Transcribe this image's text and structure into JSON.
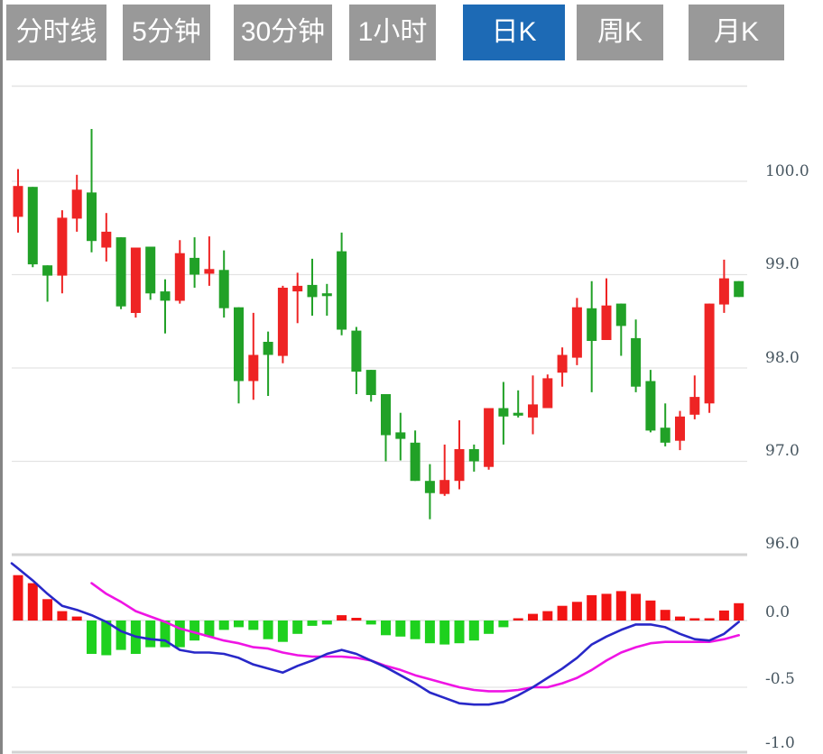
{
  "toolbar": {
    "tabs": [
      {
        "label": "分时线",
        "active": false
      },
      {
        "label": "5分钟",
        "active": false
      },
      {
        "label": "30分钟",
        "active": false
      },
      {
        "label": "1小时",
        "active": false
      },
      {
        "label": "日K",
        "active": true
      },
      {
        "label": "周K",
        "active": false
      },
      {
        "label": "月K",
        "active": false
      }
    ]
  },
  "colors": {
    "tab_gray": "#999999",
    "tab_active_blue": "#1d6ab5",
    "up_red": "#ee2424",
    "down_green": "#21a127",
    "macd_bar_up": "#f21414",
    "macd_bar_down": "#1ed11e",
    "dif_blue": "#2828c8",
    "dea_magenta": "#ef14e4",
    "grid": "#e3e3e3",
    "zero_line": "#dcdcdc",
    "separator": "#d2d2d2",
    "axis_label": "#46555f"
  },
  "chart_data": {
    "type": "candlestick",
    "title": "Daily K-line with MACD",
    "legend_position": "none",
    "grid": true,
    "price_axis": {
      "labels": [
        "100.0",
        "99.0",
        "98.0",
        "97.0",
        "96.0"
      ],
      "ticks": [
        100,
        99,
        98,
        97,
        96
      ],
      "range": [
        95.9,
        101.0
      ]
    },
    "macd_axis": {
      "labels": [
        "0.0",
        "-0.5",
        "-1.0"
      ],
      "ticks": [
        0,
        -0.5,
        -1
      ],
      "range": [
        -1.0,
        0.45
      ]
    },
    "candles": [
      {
        "o": 99.62,
        "c": 99.95,
        "h": 100.13,
        "l": 99.45
      },
      {
        "o": 99.94,
        "c": 99.11,
        "h": 99.94,
        "l": 99.08
      },
      {
        "o": 99.1,
        "c": 98.99,
        "h": 99.1,
        "l": 98.71
      },
      {
        "o": 98.99,
        "c": 99.61,
        "h": 99.69,
        "l": 98.8
      },
      {
        "o": 99.6,
        "c": 99.91,
        "h": 100.07,
        "l": 99.46
      },
      {
        "o": 99.88,
        "c": 99.36,
        "h": 100.56,
        "l": 99.24
      },
      {
        "o": 99.29,
        "c": 99.46,
        "h": 99.66,
        "l": 99.14
      },
      {
        "o": 99.4,
        "c": 98.66,
        "h": 99.4,
        "l": 98.63
      },
      {
        "o": 98.59,
        "c": 99.29,
        "h": 99.29,
        "l": 98.54
      },
      {
        "o": 99.3,
        "c": 98.8,
        "h": 99.3,
        "l": 98.73
      },
      {
        "o": 98.82,
        "c": 98.72,
        "h": 98.95,
        "l": 98.37
      },
      {
        "o": 98.72,
        "c": 99.23,
        "h": 99.37,
        "l": 98.69
      },
      {
        "o": 99.18,
        "c": 99.0,
        "h": 99.4,
        "l": 98.86
      },
      {
        "o": 99.01,
        "c": 99.06,
        "h": 99.41,
        "l": 98.88
      },
      {
        "o": 99.05,
        "c": 98.64,
        "h": 99.26,
        "l": 98.54
      },
      {
        "o": 98.65,
        "c": 97.86,
        "h": 98.65,
        "l": 97.62
      },
      {
        "o": 97.86,
        "c": 98.14,
        "h": 98.59,
        "l": 97.66
      },
      {
        "o": 98.28,
        "c": 98.14,
        "h": 98.39,
        "l": 97.7
      },
      {
        "o": 98.13,
        "c": 98.86,
        "h": 98.88,
        "l": 98.05
      },
      {
        "o": 98.82,
        "c": 98.88,
        "h": 99.02,
        "l": 98.48
      },
      {
        "o": 98.89,
        "c": 98.76,
        "h": 99.17,
        "l": 98.56
      },
      {
        "o": 98.8,
        "c": 98.77,
        "h": 98.9,
        "l": 98.56
      },
      {
        "o": 99.25,
        "c": 98.41,
        "h": 99.45,
        "l": 98.35
      },
      {
        "o": 98.4,
        "c": 97.96,
        "h": 98.44,
        "l": 97.72
      },
      {
        "o": 97.98,
        "c": 97.71,
        "h": 97.98,
        "l": 97.64
      },
      {
        "o": 97.72,
        "c": 97.28,
        "h": 97.72,
        "l": 97.0
      },
      {
        "o": 97.31,
        "c": 97.24,
        "h": 97.52,
        "l": 97.01
      },
      {
        "o": 97.2,
        "c": 96.79,
        "h": 97.33,
        "l": 96.79
      },
      {
        "o": 96.79,
        "c": 96.66,
        "h": 96.97,
        "l": 96.38
      },
      {
        "o": 96.65,
        "c": 96.8,
        "h": 97.18,
        "l": 96.63
      },
      {
        "o": 96.79,
        "c": 97.13,
        "h": 97.44,
        "l": 96.7
      },
      {
        "o": 97.13,
        "c": 97.0,
        "h": 97.18,
        "l": 96.89
      },
      {
        "o": 96.94,
        "c": 97.57,
        "h": 97.57,
        "l": 96.91
      },
      {
        "o": 97.57,
        "c": 97.48,
        "h": 97.85,
        "l": 97.18
      },
      {
        "o": 97.52,
        "c": 97.49,
        "h": 97.76,
        "l": 97.47
      },
      {
        "o": 97.47,
        "c": 97.61,
        "h": 97.92,
        "l": 97.29
      },
      {
        "o": 97.57,
        "c": 97.89,
        "h": 97.93,
        "l": 97.57
      },
      {
        "o": 97.95,
        "c": 98.14,
        "h": 98.22,
        "l": 97.8
      },
      {
        "o": 98.11,
        "c": 98.65,
        "h": 98.75,
        "l": 98.03
      },
      {
        "o": 98.64,
        "c": 98.29,
        "h": 98.93,
        "l": 97.74
      },
      {
        "o": 98.3,
        "c": 98.67,
        "h": 98.96,
        "l": 98.3
      },
      {
        "o": 98.69,
        "c": 98.45,
        "h": 98.69,
        "l": 98.13
      },
      {
        "o": 98.32,
        "c": 97.8,
        "h": 98.52,
        "l": 97.74
      },
      {
        "o": 97.86,
        "c": 97.33,
        "h": 97.98,
        "l": 97.31
      },
      {
        "o": 97.36,
        "c": 97.2,
        "h": 97.62,
        "l": 97.16
      },
      {
        "o": 97.22,
        "c": 97.48,
        "h": 97.54,
        "l": 97.12
      },
      {
        "o": 97.5,
        "c": 97.69,
        "h": 97.92,
        "l": 97.45
      },
      {
        "o": 97.62,
        "c": 98.69,
        "h": 98.69,
        "l": 97.52
      },
      {
        "o": 98.68,
        "c": 98.96,
        "h": 99.16,
        "l": 98.59
      },
      {
        "o": 98.93,
        "c": 98.76,
        "h": 98.93,
        "l": 98.76
      }
    ],
    "macd": {
      "histogram": [
        0.34,
        0.28,
        0.16,
        0.07,
        0.03,
        -0.25,
        -0.26,
        -0.22,
        -0.25,
        -0.2,
        -0.2,
        -0.2,
        -0.15,
        -0.12,
        -0.07,
        -0.05,
        -0.07,
        -0.14,
        -0.16,
        -0.1,
        -0.04,
        -0.03,
        0.04,
        0.02,
        -0.03,
        -0.11,
        -0.12,
        -0.14,
        -0.17,
        -0.18,
        -0.17,
        -0.15,
        -0.1,
        -0.05,
        0.01,
        0.05,
        0.07,
        0.11,
        0.14,
        0.19,
        0.2,
        0.22,
        0.2,
        0.15,
        0.08,
        0.03,
        0.015,
        0.015,
        0.075,
        0.13
      ],
      "dif": [
        0.39,
        0.3,
        0.2,
        0.11,
        0.08,
        0.04,
        -0.01,
        -0.08,
        -0.12,
        -0.14,
        -0.15,
        -0.22,
        -0.24,
        -0.24,
        -0.25,
        -0.28,
        -0.33,
        -0.36,
        -0.39,
        -0.34,
        -0.3,
        -0.25,
        -0.22,
        -0.25,
        -0.3,
        -0.35,
        -0.41,
        -0.47,
        -0.54,
        -0.58,
        -0.62,
        -0.63,
        -0.63,
        -0.61,
        -0.56,
        -0.5,
        -0.43,
        -0.36,
        -0.28,
        -0.18,
        -0.12,
        -0.07,
        -0.03,
        -0.03,
        -0.05,
        -0.1,
        -0.14,
        -0.15,
        -0.1,
        -0.01
      ],
      "dea": [
        null,
        null,
        null,
        null,
        null,
        0.28,
        0.2,
        0.14,
        0.07,
        0.03,
        -0.01,
        -0.06,
        -0.09,
        -0.12,
        -0.15,
        -0.17,
        -0.2,
        -0.21,
        -0.24,
        -0.26,
        -0.27,
        -0.27,
        -0.27,
        -0.28,
        -0.3,
        -0.34,
        -0.37,
        -0.41,
        -0.44,
        -0.47,
        -0.5,
        -0.52,
        -0.53,
        -0.53,
        -0.52,
        -0.5,
        -0.5,
        -0.47,
        -0.43,
        -0.37,
        -0.3,
        -0.24,
        -0.2,
        -0.17,
        -0.16,
        -0.16,
        -0.16,
        -0.16,
        -0.14,
        -0.11
      ]
    }
  }
}
